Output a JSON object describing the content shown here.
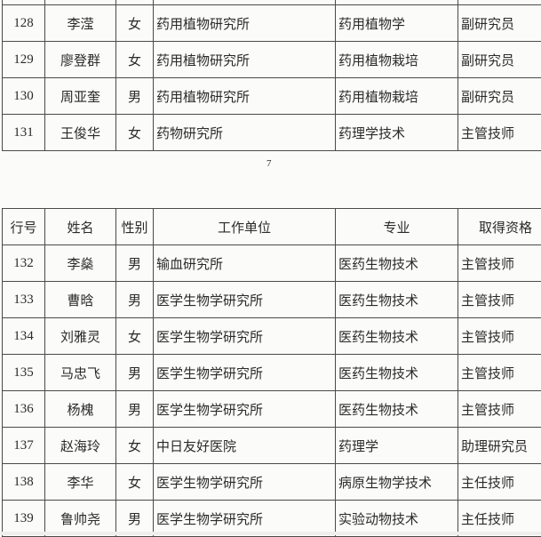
{
  "header": [
    "行号",
    "姓名",
    "性别",
    "工作单位",
    "专业",
    "取得资格"
  ],
  "table_top": [
    [
      "",
      "",
      "",
      "",
      "",
      ""
    ],
    [
      "128",
      "李滢",
      "女",
      "药用植物研究所",
      "药用植物学",
      "副研究员"
    ],
    [
      "129",
      "廖登群",
      "女",
      "药用植物研究所",
      "药用植物栽培",
      "副研究员"
    ],
    [
      "130",
      "周亚奎",
      "男",
      "药用植物研究所",
      "药用植物栽培",
      "副研究员"
    ],
    [
      "131",
      "王俊华",
      "女",
      "药物研究所",
      "药理学技术",
      "主管技师"
    ]
  ],
  "page_number": "7",
  "table_bottom": [
    [
      "132",
      "李燊",
      "男",
      "输血研究所",
      "医药生物技术",
      "主管技师"
    ],
    [
      "133",
      "曹晗",
      "男",
      "医学生物学研究所",
      "医药生物技术",
      "主管技师"
    ],
    [
      "134",
      "刘雅灵",
      "女",
      "医学生物学研究所",
      "医药生物技术",
      "主管技师"
    ],
    [
      "135",
      "马忠飞",
      "男",
      "医学生物学研究所",
      "医药生物技术",
      "主管技师"
    ],
    [
      "136",
      "杨槐",
      "男",
      "医学生物学研究所",
      "医药生物技术",
      "主管技师"
    ],
    [
      "137",
      "赵海玲",
      "女",
      "中日友好医院",
      "药理学",
      "助理研究员"
    ],
    [
      "138",
      "李华",
      "女",
      "医学生物学研究所",
      "病原生物学技术",
      "主任技师"
    ],
    [
      "139",
      "鲁帅尧",
      "男",
      "医学生物学研究所",
      "实验动物技术",
      "主任技师"
    ]
  ]
}
